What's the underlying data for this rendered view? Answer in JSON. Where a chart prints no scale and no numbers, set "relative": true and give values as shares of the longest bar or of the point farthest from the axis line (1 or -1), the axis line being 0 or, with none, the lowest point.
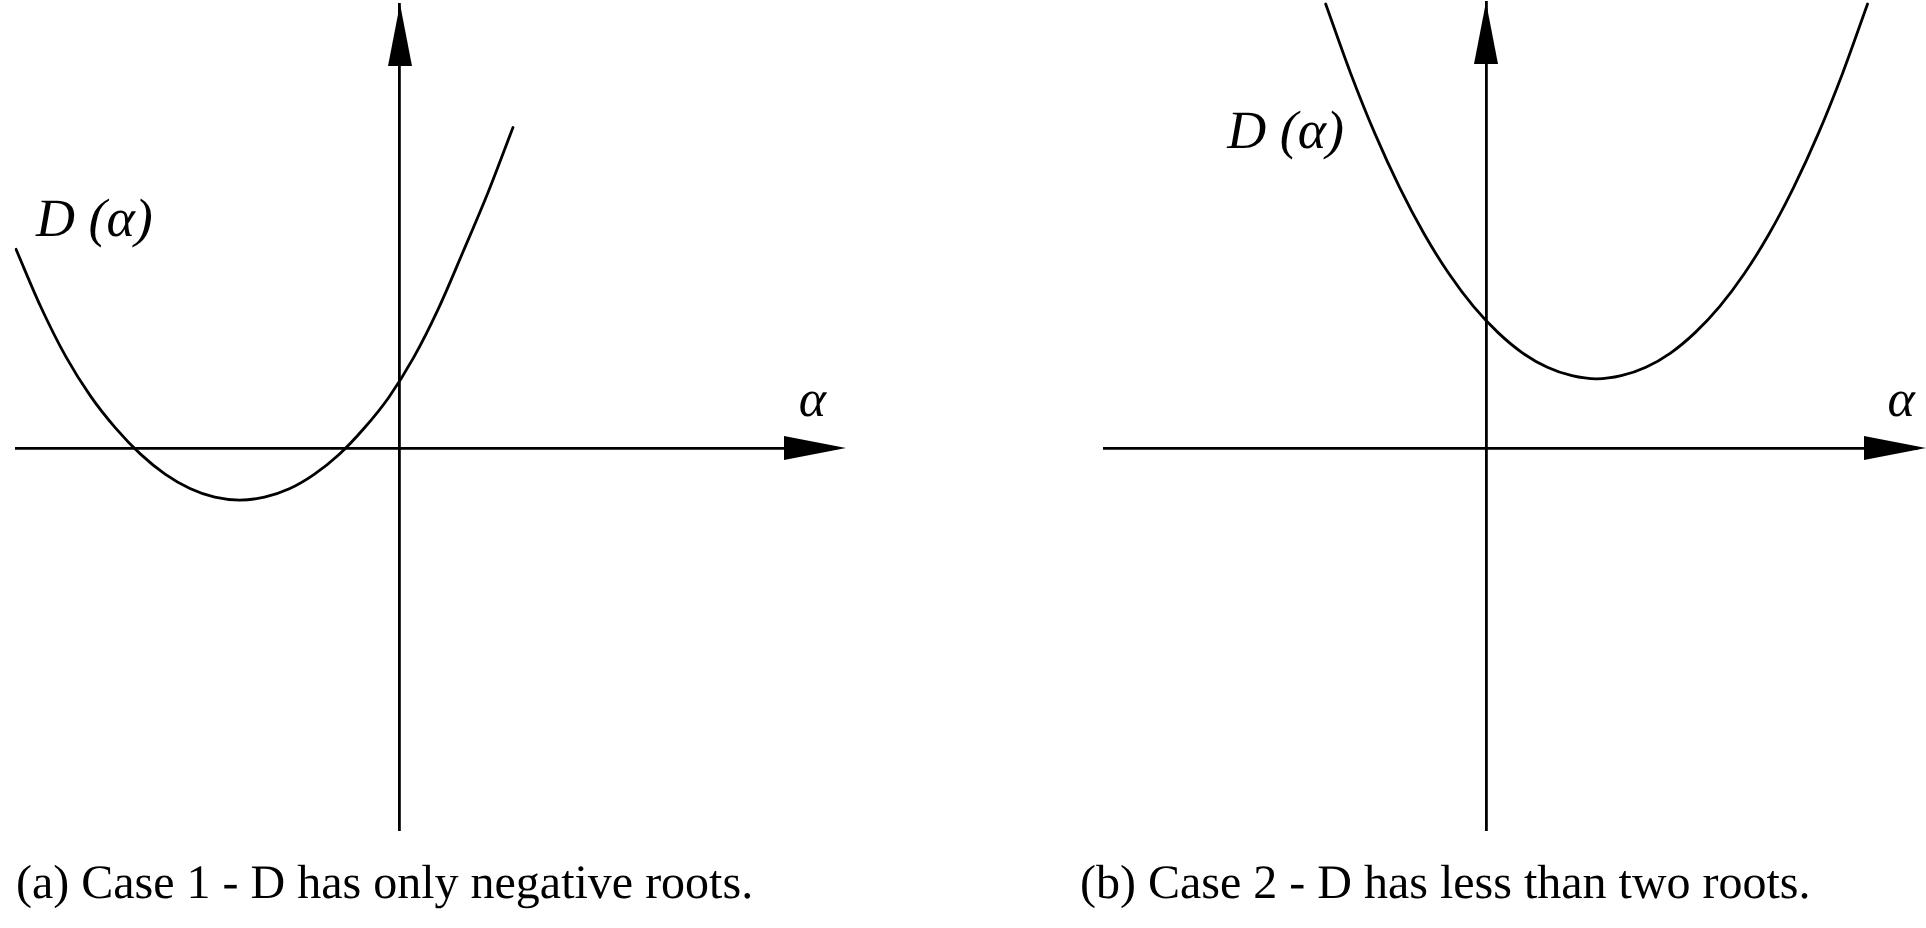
{
  "chart_data": [
    {
      "type": "line",
      "title": "(a) Case 1 - D has only negative roots.",
      "xlabel": "α",
      "relative": true,
      "marker": "none",
      "categories": [
        null,
        null,
        null,
        null,
        null,
        null,
        null,
        null,
        null,
        null,
        null,
        null,
        null,
        null,
        null,
        null,
        null,
        null,
        null,
        null,
        null,
        null,
        null,
        null,
        null,
        null,
        null,
        null,
        null,
        null,
        null,
        null,
        null,
        null
      ],
      "series": [
        {
          "name": "D (α)",
          "color": "#000000",
          "values": [
            0.62,
            0.44,
            0.286,
            0.162,
            0.063,
            -0.018,
            -0.081,
            -0.126,
            -0.153,
            -0.162,
            -0.153,
            -0.127,
            -0.082,
            -0.02,
            0.061,
            0.158,
            0.282,
            0.435,
            0.614,
            0.798,
            1,
            null,
            null,
            null,
            null,
            null,
            null,
            null,
            null,
            null,
            null,
            null,
            null,
            null
          ]
        }
      ]
    },
    {
      "type": "line",
      "title": "(b) Case 2 - D has less than two roots.",
      "xlabel": "α",
      "relative": true,
      "marker": "none",
      "categories": [
        null,
        null,
        null,
        null,
        null,
        null,
        null,
        null,
        null,
        null,
        null,
        null,
        null,
        null,
        null,
        null,
        null,
        null,
        null,
        null,
        null,
        null,
        null,
        null,
        null,
        null,
        null,
        null,
        null,
        null,
        null,
        null,
        null,
        null
      ],
      "series": [
        {
          "name": "D (α)",
          "color": "#000000",
          "values": [
            null,
            null,
            null,
            null,
            null,
            null,
            null,
            null,
            null,
            1,
            0.846,
            0.708,
            0.587,
            0.482,
            0.393,
            0.319,
            0.26,
            0.214,
            0.182,
            0.163,
            0.156,
            0.163,
            0.182,
            0.214,
            0.26,
            0.319,
            0.393,
            0.482,
            0.587,
            0.708,
            0.846,
            1,
            null,
            null
          ]
        }
      ]
    }
  ]
}
